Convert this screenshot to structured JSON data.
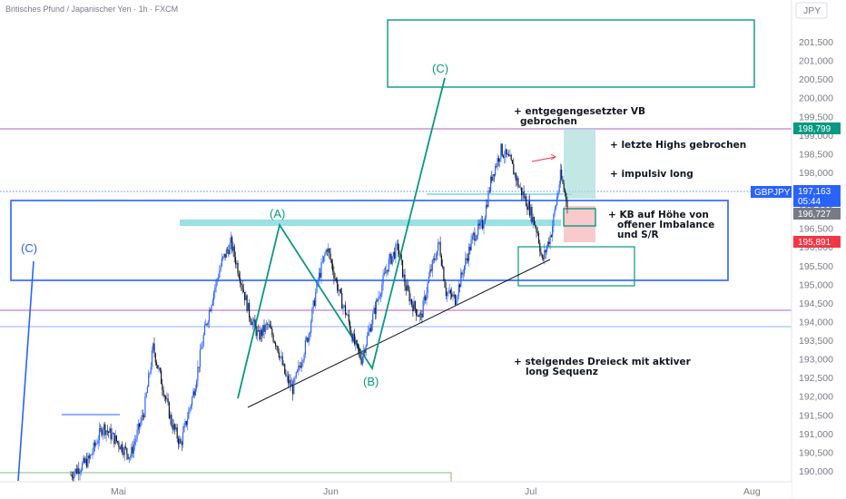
{
  "header": {
    "title": "Britisches Pfund / Japanischer Yen · 1h · FXCM"
  },
  "chart_data": {
    "type": "candlestick",
    "symbol": "GBPJPY",
    "currency_label": "JPY",
    "y_ticks": [
      "201,500",
      "201,000",
      "200,500",
      "200,000",
      "199,500",
      "199,000",
      "198,500",
      "198,000",
      "197,500",
      "197,000",
      "196,500",
      "196,000",
      "195,500",
      "195,000",
      "194,500",
      "194,000",
      "193,500",
      "193,000",
      "192,500",
      "192,000",
      "191,500",
      "191,000",
      "190,500",
      "190,000"
    ],
    "x_ticks": [
      "Mai",
      "Jun",
      "Jul",
      "Aug"
    ],
    "ylim": [
      189.75,
      201.9
    ],
    "price_path": [
      [
        0,
        189.9
      ],
      [
        8,
        190.3
      ],
      [
        14,
        191.2
      ],
      [
        20,
        190.8
      ],
      [
        26,
        190.4
      ],
      [
        32,
        191.6
      ],
      [
        36,
        193.3
      ],
      [
        40,
        192.3
      ],
      [
        44,
        191.3
      ],
      [
        48,
        190.7
      ],
      [
        54,
        192.2
      ],
      [
        58,
        193.6
      ],
      [
        62,
        194.7
      ],
      [
        66,
        195.6
      ],
      [
        70,
        196.1
      ],
      [
        74,
        195.2
      ],
      [
        78,
        194.2
      ],
      [
        82,
        193.6
      ],
      [
        86,
        193.9
      ],
      [
        90,
        193.4
      ],
      [
        94,
        192.5
      ],
      [
        97,
        192.2
      ],
      [
        100,
        192.8
      ],
      [
        104,
        193.7
      ],
      [
        108,
        195.1
      ],
      [
        112,
        196.0
      ],
      [
        115,
        195.3
      ],
      [
        118,
        194.6
      ],
      [
        121,
        194.1
      ],
      [
        124,
        193.4
      ],
      [
        127,
        193.0
      ],
      [
        131,
        193.9
      ],
      [
        135,
        194.8
      ],
      [
        139,
        195.6
      ],
      [
        143,
        196.0
      ],
      [
        146,
        195.0
      ],
      [
        149,
        194.5
      ],
      [
        153,
        194.1
      ],
      [
        157,
        195.3
      ],
      [
        161,
        196.1
      ],
      [
        164,
        194.8
      ],
      [
        168,
        194.6
      ],
      [
        172,
        195.5
      ],
      [
        176,
        196.3
      ],
      [
        180,
        196.6
      ],
      [
        184,
        197.9
      ],
      [
        188,
        198.6
      ],
      [
        192,
        198.3
      ],
      [
        196,
        197.6
      ],
      [
        200,
        197.1
      ],
      [
        204,
        196.4
      ],
      [
        206,
        195.6
      ],
      [
        210,
        196.4
      ],
      [
        214,
        197.9
      ],
      [
        217,
        197.2
      ]
    ],
    "series": [
      {
        "name": "GBPJPY",
        "last": "197,163",
        "countdown": "05:44"
      }
    ],
    "price_tags": [
      {
        "value": "198,799",
        "color": "#089981"
      },
      {
        "value": "197,163",
        "color": "#2962ff"
      },
      {
        "value": "196,727",
        "color": "#787b86"
      },
      {
        "value": "195,891",
        "color": "#f23645"
      }
    ],
    "waves": [
      {
        "label": "(A)",
        "value": 196.1
      },
      {
        "label": "(B)",
        "value": 192.6
      },
      {
        "label": "(C)",
        "value": 200.3
      },
      {
        "label": "(C)",
        "value": 195.3
      }
    ],
    "annotations": [
      {
        "text": "+ entgegengesetzter VB",
        "cont": "gebrochen"
      },
      {
        "text": "+ letzte Highs gebrochen"
      },
      {
        "text": "+ impulsiv long"
      },
      {
        "text": "+ KB auf Höhe von",
        "cont": "offener Imbalance",
        "cont2": "und S/R"
      },
      {
        "text": "+ steigendes Dreieck mit aktiver",
        "cont": "long Sequenz"
      }
    ]
  }
}
